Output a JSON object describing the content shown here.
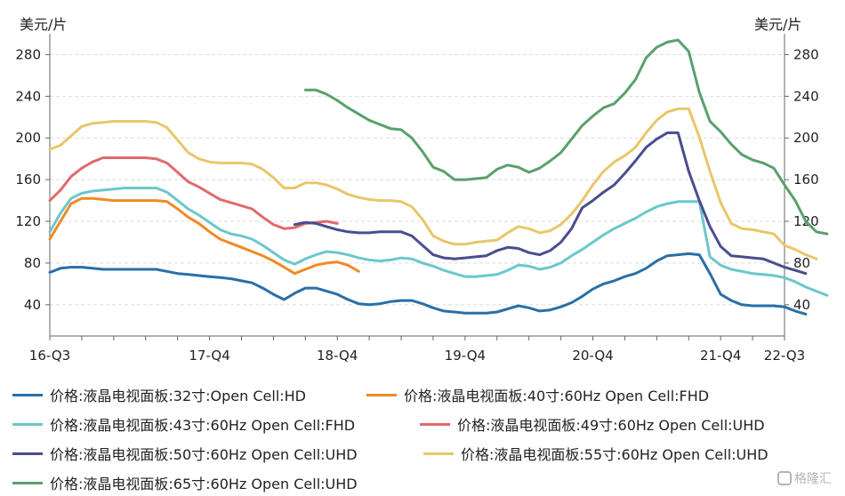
{
  "unit_left": "美元/片",
  "unit_right": "美元/片",
  "watermark": "格隆汇",
  "chart_data": {
    "type": "line",
    "title": "",
    "xlabel": "",
    "ylabel": "美元/片",
    "ylim": [
      10,
      300
    ],
    "yticks": [
      40,
      80,
      120,
      160,
      200,
      240,
      280
    ],
    "xticks": [
      "16-Q3",
      "17-Q4",
      "18-Q4",
      "19-Q4",
      "20-Q4",
      "21-Q4",
      "22-Q3"
    ],
    "xtick_positions": [
      0,
      15,
      27,
      39,
      51,
      63,
      69
    ],
    "grid": true,
    "legend_position": "bottom",
    "series": [
      {
        "name": "价格:液晶电视面板:32寸:Open Cell:HD",
        "color": "#2a6fa5",
        "start": 0,
        "values": [
          71,
          75,
          76,
          76,
          75,
          74,
          74,
          74,
          74,
          74,
          74,
          72,
          70,
          69,
          68,
          67,
          66,
          65,
          63,
          61,
          56,
          50,
          45,
          51,
          56,
          56,
          53,
          50,
          45,
          41,
          40,
          41,
          43,
          44,
          44,
          41,
          37,
          34,
          33,
          32,
          32,
          32,
          33,
          36,
          39,
          37,
          34,
          35,
          38,
          42,
          48,
          55,
          60,
          63,
          67,
          70,
          75,
          82,
          87,
          88,
          89,
          88,
          70,
          50,
          44,
          40,
          39,
          39,
          39,
          38,
          34,
          31
        ]
      },
      {
        "name": "价格:液晶电视面板:40寸:60Hz Open Cell:FHD",
        "color": "#f08a24",
        "start": 0,
        "values": [
          103,
          120,
          137,
          142,
          142,
          141,
          140,
          140,
          140,
          140,
          140,
          139,
          132,
          124,
          118,
          110,
          103,
          99,
          95,
          91,
          87,
          82,
          76,
          70,
          74,
          78,
          80,
          81,
          78,
          72
        ]
      },
      {
        "name": "价格:液晶电视面板:43寸:60Hz Open Cell:FHD",
        "color": "#6cc7c9",
        "start": 0,
        "values": [
          110,
          128,
          142,
          147,
          149,
          150,
          151,
          152,
          152,
          152,
          152,
          148,
          140,
          132,
          126,
          119,
          112,
          108,
          106,
          103,
          97,
          90,
          83,
          79,
          84,
          88,
          91,
          90,
          88,
          85,
          83,
          82,
          83,
          85,
          84,
          80,
          77,
          73,
          70,
          67,
          67,
          68,
          69,
          73,
          78,
          77,
          74,
          76,
          80,
          87,
          93,
          100,
          107,
          113,
          118,
          123,
          129,
          134,
          137,
          139,
          139,
          139,
          86,
          78,
          74,
          72,
          70,
          69,
          68,
          66,
          62,
          57,
          53,
          49
        ]
      },
      {
        "name": "价格:液晶电视面板:49寸:60Hz Open Cell:UHD",
        "color": "#e06a6c",
        "start": 0,
        "values": [
          140,
          150,
          163,
          171,
          177,
          181,
          181,
          181,
          181,
          181,
          180,
          176,
          167,
          158,
          153,
          147,
          141,
          138,
          135,
          132,
          124,
          117,
          113,
          114,
          118,
          119,
          120,
          118
        ]
      },
      {
        "name": "价格:液晶电视面板:50寸:60Hz Open Cell:UHD",
        "color": "#4a4d8f",
        "start": 23,
        "values": [
          117,
          119,
          118,
          115,
          112,
          110,
          109,
          109,
          110,
          110,
          110,
          106,
          97,
          88,
          85,
          84,
          85,
          86,
          87,
          92,
          95,
          94,
          90,
          88,
          92,
          100,
          113,
          133,
          140,
          148,
          155,
          166,
          178,
          191,
          199,
          205,
          205,
          168,
          140,
          115,
          96,
          87,
          86,
          85,
          84,
          80,
          76,
          73,
          70
        ]
      },
      {
        "name": "价格:液晶电视面板:55寸:60Hz Open Cell:UHD",
        "color": "#e8c76a",
        "start": 0,
        "values": [
          189,
          193,
          202,
          211,
          214,
          215,
          216,
          216,
          216,
          216,
          215,
          210,
          198,
          186,
          180,
          177,
          176,
          176,
          176,
          175,
          170,
          162,
          152,
          152,
          157,
          157,
          155,
          151,
          146,
          143,
          141,
          140,
          140,
          139,
          134,
          122,
          106,
          101,
          98,
          98,
          100,
          101,
          102,
          109,
          115,
          113,
          109,
          111,
          117,
          127,
          140,
          155,
          168,
          177,
          183,
          191,
          205,
          217,
          225,
          228,
          228,
          201,
          168,
          138,
          118,
          113,
          112,
          110,
          108,
          97,
          93,
          88,
          84
        ]
      },
      {
        "name": "价格:液晶电视面板:65寸:60Hz Open Cell:UHD",
        "color": "#5aa06d",
        "start": 24,
        "values": [
          246,
          246,
          242,
          236,
          229,
          223,
          217,
          213,
          209,
          208,
          200,
          187,
          172,
          168,
          160,
          160,
          161,
          162,
          170,
          174,
          172,
          167,
          171,
          178,
          186,
          199,
          212,
          221,
          229,
          233,
          243,
          256,
          277,
          287,
          292,
          294,
          283,
          244,
          216,
          206,
          194,
          184,
          179,
          176,
          171,
          155,
          140,
          120,
          110,
          108
        ]
      }
    ]
  }
}
